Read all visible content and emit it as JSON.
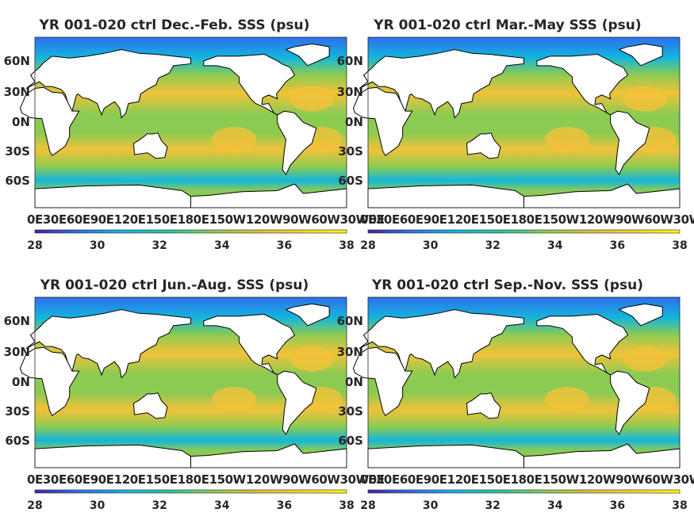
{
  "panels": [
    {
      "title": "YR 001-020 ctrl Dec.-Feb. SSS (psu)",
      "season": "DJF"
    },
    {
      "title": "YR 001-020 ctrl Mar.-May SSS (psu)",
      "season": "MAM"
    },
    {
      "title": "YR 001-020 ctrl Jun.-Aug. SSS (psu)",
      "season": "JJA"
    },
    {
      "title": "YR 001-020 ctrl Sep.-Nov. SSS (psu)",
      "season": "SON"
    }
  ],
  "lat_labels": [
    "60N",
    "30N",
    "0N",
    "30S",
    "60S"
  ],
  "lon_labels": [
    "0E",
    "30E",
    "60E",
    "90E",
    "120E",
    "150E",
    "180E",
    "150W",
    "120W",
    "90W",
    "60W",
    "30W",
    "0E"
  ],
  "colorbar": {
    "ticks": [
      "28",
      "30",
      "32",
      "34",
      "36",
      "38"
    ],
    "range": [
      28,
      38
    ],
    "colors": [
      "#3e26a8",
      "#2f6fef",
      "#13b6dc",
      "#2cc49b",
      "#8ccb52",
      "#e0bb36",
      "#f9d22a",
      "#f9fb0e"
    ]
  },
  "colors": {
    "land": "#ffffff",
    "ocean_mid": "#8ccb52",
    "ocean_salty": "#f2c23a",
    "ocean_fresh": "#13b6dc",
    "arctic": "#2f6fef"
  }
}
